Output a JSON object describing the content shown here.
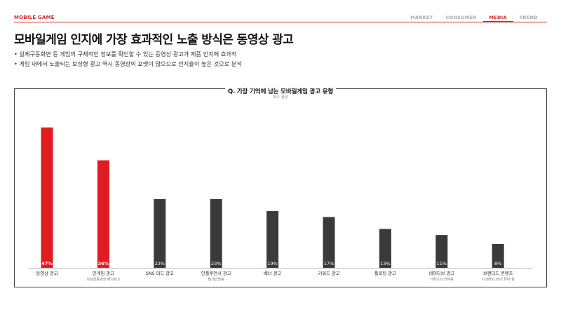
{
  "header": {
    "brand": "MOBILE GAME",
    "nav": [
      "MARKET",
      "CONSUMER",
      "MEDIA",
      "TREND"
    ],
    "active_nav": "MEDIA"
  },
  "headline": "모바일게임 인지에 가장 효과적인 노출 방식은 동영상 광고",
  "bullets": [
    "• 실제구동화면 등 게임의 구체적인 정보를 확인할 수 있는 동영상 광고가 제품 인지에 효과적",
    "• 게임 내에서 노출되는 보상형 광고 역시 동영상의 포맷이 많으므로 인지율이 높은 것으로 분석"
  ],
  "colors": {
    "accent": "#d62828",
    "highlight_bar": "#e11b22",
    "bar": "#3a3a3a"
  },
  "chart_data": {
    "type": "bar",
    "title": "Q. 가장 기억에 남는 모바일게임 광고 유형",
    "subtitle": "복수 응답",
    "categories": [
      "동영상 광고",
      "인게임 광고",
      "SNS 피드 광고",
      "인플루언서 광고",
      "배너 광고",
      "키워드 광고",
      "플로팅 광고",
      "네이티브 광고",
      "브랜디드 콘텐츠"
    ],
    "sublabels": [
      "",
      "보상형동영상·배너광고",
      "",
      "BJ개인방송",
      "",
      "",
      "",
      "기획기사,리뷰등",
      "시네마틱,OST,뮤비 등"
    ],
    "values": [
      47,
      36,
      23,
      23,
      19,
      17,
      13,
      11,
      8
    ],
    "value_labels": [
      "47%",
      "36%",
      "23%",
      "23%",
      "19%",
      "17%",
      "13%",
      "11%",
      "8%"
    ],
    "highlighted": [
      true,
      true,
      false,
      false,
      false,
      false,
      false,
      false,
      false
    ],
    "ylim": [
      0,
      50
    ],
    "grid": false,
    "legend": "none"
  }
}
